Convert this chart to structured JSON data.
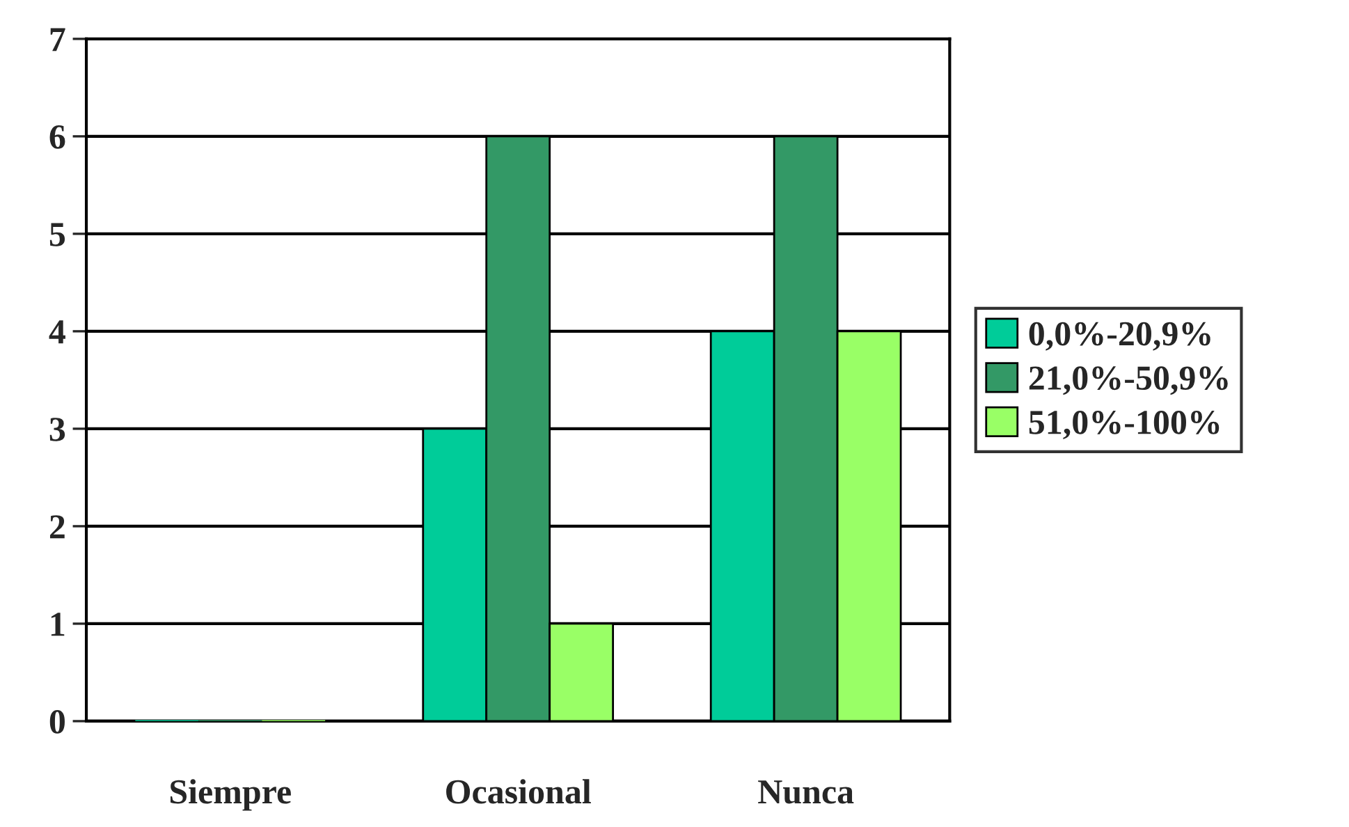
{
  "chart_data": {
    "type": "bar",
    "categories": [
      "Siempre",
      "Ocasional",
      "Nunca"
    ],
    "series": [
      {
        "name": "0,0%-20,9%",
        "color": "#00cc99",
        "values": [
          0,
          3,
          4
        ]
      },
      {
        "name": "21,0%-50,9%",
        "color": "#339966",
        "values": [
          0,
          6,
          6
        ]
      },
      {
        "name": "51,0%-100%",
        "color": "#99ff66",
        "values": [
          0,
          1,
          4
        ]
      }
    ],
    "ylim": [
      0,
      7
    ],
    "yticks": [
      0,
      1,
      2,
      3,
      4,
      5,
      6,
      7
    ],
    "grid": "y",
    "legend": "right"
  }
}
